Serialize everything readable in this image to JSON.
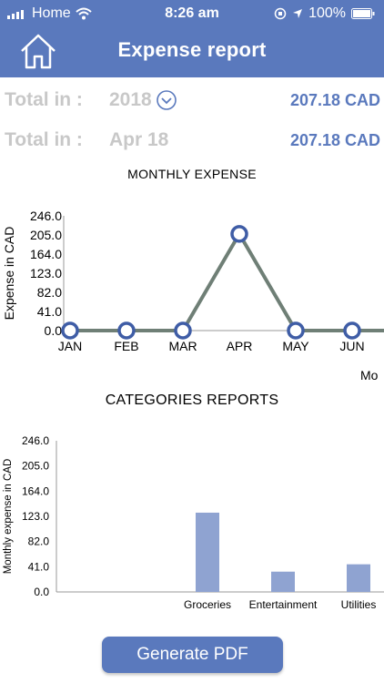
{
  "status_bar": {
    "carrier": "Home",
    "time": "8:26 am",
    "battery": "100%"
  },
  "header": {
    "title": "Expense report",
    "home_icon": "home-icon"
  },
  "totals": [
    {
      "label": "Total in :",
      "period": "2018",
      "amount": "207.18 CAD",
      "has_dropdown": true
    },
    {
      "label": "Total in :",
      "period": "Apr 18",
      "amount": "207.18 CAD",
      "has_dropdown": false
    }
  ],
  "monthly_chart": {
    "title": "MONTHLY EXPENSE",
    "ylabel": "Expense in CAD",
    "xlabel_visible": "Mo"
  },
  "categories_chart": {
    "title": "CATEGORIES REPORTS",
    "ylabel": "Monthly expense in CAD"
  },
  "chart_data": [
    {
      "type": "line",
      "title": "MONTHLY EXPENSE",
      "xlabel": "Mo",
      "ylabel": "Expense in CAD",
      "categories": [
        "JAN",
        "FEB",
        "MAR",
        "APR",
        "MAY",
        "JUN"
      ],
      "values": [
        0,
        0,
        0,
        207.18,
        0,
        0
      ],
      "yticks": [
        "0.0",
        "41.0",
        "82.0",
        "123.0",
        "164.0",
        "205.0",
        "246.0"
      ],
      "ylim": [
        0,
        246
      ],
      "line_color": "#6f7f76",
      "marker_color": "#3f5da6"
    },
    {
      "type": "bar",
      "title": "CATEGORIES REPORTS",
      "ylabel": "Monthly expense in CAD",
      "categories": [
        "",
        "",
        "Groceries",
        "Entertainment",
        "Utilities"
      ],
      "values": [
        0,
        0,
        129,
        33,
        45
      ],
      "yticks": [
        "0.0",
        "41.0",
        "82.0",
        "123.0",
        "164.0",
        "205.0",
        "246.0"
      ],
      "ylim": [
        0,
        246
      ],
      "bar_color": "#8fa3d1"
    }
  ],
  "actions": {
    "generate_pdf": "Generate PDF"
  },
  "colors": {
    "accent": "#5a79bd",
    "muted_text": "#c8c8c8"
  }
}
